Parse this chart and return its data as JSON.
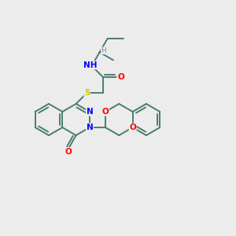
{
  "background_color": "#ececec",
  "bond_color": "#4a7c6f",
  "atom_colors": {
    "N": "#0000ff",
    "O": "#ff0000",
    "S": "#cccc00",
    "H": "#888888",
    "C": "#4a7c6f"
  },
  "figsize": [
    3.0,
    3.0
  ],
  "dpi": 100,
  "lw": 1.4,
  "r": 20
}
